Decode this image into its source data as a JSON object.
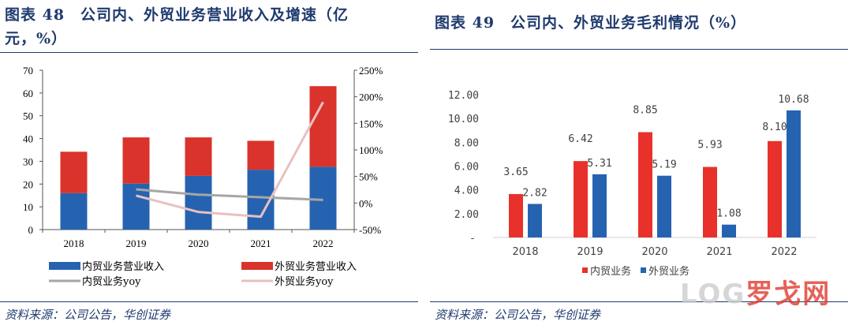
{
  "left": {
    "title": "图表 48　公司内、外贸业务营业收入及增速（亿元，%）",
    "title_line1": "图表 48　公司内、外贸业务营业收入及增速（亿",
    "title_line2": "元，%）",
    "source": "资料来源：公司公告，华创证券"
  },
  "right": {
    "title": "图表 49　公司内、外贸业务毛利情况（%）",
    "source": "资料来源：公司公告，华创证券"
  },
  "watermark": "LOG罗戈网",
  "chart_data": [
    {
      "type": "bar",
      "stacked": true,
      "categories": [
        "2018",
        "2019",
        "2020",
        "2021",
        "2022"
      ],
      "ylim": [
        0,
        70
      ],
      "yticks": [
        "0",
        "10",
        "20",
        "30",
        "40",
        "50",
        "60",
        "70"
      ],
      "y2lim": [
        -50,
        250
      ],
      "y2ticks": [
        "-50%",
        "0%",
        "50%",
        "100%",
        "150%",
        "200%",
        "250%"
      ],
      "series": [
        {
          "name": "内贸业务营业收入",
          "kind": "bar",
          "axis": "left",
          "color": "#2563b0",
          "values": [
            16.0,
            20.2,
            23.6,
            26.3,
            27.6
          ]
        },
        {
          "name": "外贸业务营业收入",
          "kind": "bar",
          "axis": "left",
          "color": "#d9332b",
          "values": [
            18.2,
            20.3,
            16.9,
            12.7,
            35.4
          ]
        },
        {
          "name": "内贸业务yoy",
          "kind": "line",
          "axis": "right",
          "color": "#a6a6a6",
          "values": [
            null,
            25.7,
            15.8,
            10.9,
            5.9
          ]
        },
        {
          "name": "外贸业务yoy",
          "kind": "line",
          "axis": "right",
          "color": "#e8c0c0",
          "values": [
            null,
            13.9,
            -16.8,
            -25.7,
            190
          ]
        }
      ],
      "legend": "bottom"
    },
    {
      "type": "bar",
      "categories": [
        "2018",
        "2019",
        "2020",
        "2021",
        "2022"
      ],
      "ylim": [
        0,
        12
      ],
      "yticks": [
        "-",
        "2.00",
        "4.00",
        "6.00",
        "8.00",
        "10.00",
        "12.00"
      ],
      "series": [
        {
          "name": "内贸业务",
          "color": "#e8312a",
          "values": [
            3.65,
            6.42,
            8.85,
            5.93,
            8.1
          ],
          "labels": [
            "3.65",
            "6.42",
            "8.85",
            "5.93",
            "8.10"
          ]
        },
        {
          "name": "外贸业务",
          "color": "#2563b0",
          "values": [
            2.82,
            5.31,
            5.19,
            1.08,
            10.68
          ],
          "labels": [
            "2.82",
            "5.31",
            "5.19",
            "1.08",
            "10.68"
          ]
        }
      ],
      "legend": "bottom"
    }
  ]
}
